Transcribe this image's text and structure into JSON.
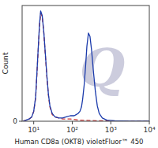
{
  "chart_data": {
    "type": "line",
    "title": "",
    "xlabel": "Human CD8a (OKT8) violetFluor™ 450",
    "ylabel": "Count",
    "annotations": [
      "Q"
    ],
    "log": "x",
    "grid": false,
    "xlim": [
      5,
      10000
    ],
    "ylim": [
      0,
      1.05
    ],
    "xticks": [
      {
        "value": 10,
        "label": "10¹"
      },
      {
        "value": 100,
        "label": "10²"
      },
      {
        "value": 1000,
        "label": "10³"
      },
      {
        "value": 10000,
        "label": "10⁴"
      }
    ],
    "yticks": [
      0
    ],
    "series": [
      {
        "color": "#cc3333",
        "line_style": "dashed",
        "x": [
          5.248075,
          6.309573,
          7.585776,
          8.912509,
          10,
          11.22018,
          12.58925,
          14.12538,
          15.13561,
          16.59587,
          18.19701,
          19.95262,
          21.87762,
          23.98833,
          26.30268,
          30.19952,
          35.48134,
          44.66836,
          56.23413,
          70.79458,
          89.12509,
          158.4893,
          398.1072,
          1000,
          10000
        ],
        "values": [
          0.0,
          0.01,
          0.02,
          0.04,
          0.09,
          0.21,
          0.54,
          0.86,
          0.98,
          0.95,
          0.81,
          0.61,
          0.41,
          0.24,
          0.13,
          0.06,
          0.04,
          0.03,
          0.02,
          0.02,
          0.02,
          0.01,
          0.005,
          0.002,
          0.0
        ]
      },
      {
        "color": "#1a3aab",
        "line_style": "solid",
        "x": [
          5.248075,
          6.309573,
          7.585776,
          8.912509,
          10,
          11.22018,
          12.58925,
          14.12538,
          15.13561,
          16.59587,
          18.19701,
          19.95262,
          21.87762,
          23.98833,
          26.30268,
          30.19952,
          35.48134,
          44.66836,
          56.23413,
          70.79458,
          89.12509,
          112.2018,
          125.8925,
          141.2538,
          158.4893,
          173.7801,
          186.2087,
          204.1738,
          223.8721,
          239.8833,
          263.0268,
          288.4032,
          316.2278,
          354.8134,
          398.1072,
          446.6836,
          501.1872,
          602.5596,
          794.3282,
          1258.925,
          3162.278,
          10000
        ],
        "values": [
          0.0,
          0.01,
          0.02,
          0.04,
          0.09,
          0.22,
          0.55,
          0.88,
          1.0,
          0.96,
          0.82,
          0.62,
          0.42,
          0.25,
          0.14,
          0.07,
          0.04,
          0.03,
          0.03,
          0.04,
          0.05,
          0.05,
          0.06,
          0.07,
          0.09,
          0.13,
          0.2,
          0.33,
          0.52,
          0.68,
          0.8,
          0.77,
          0.65,
          0.45,
          0.27,
          0.14,
          0.07,
          0.03,
          0.01,
          0.005,
          0.0,
          0.0
        ]
      }
    ]
  }
}
